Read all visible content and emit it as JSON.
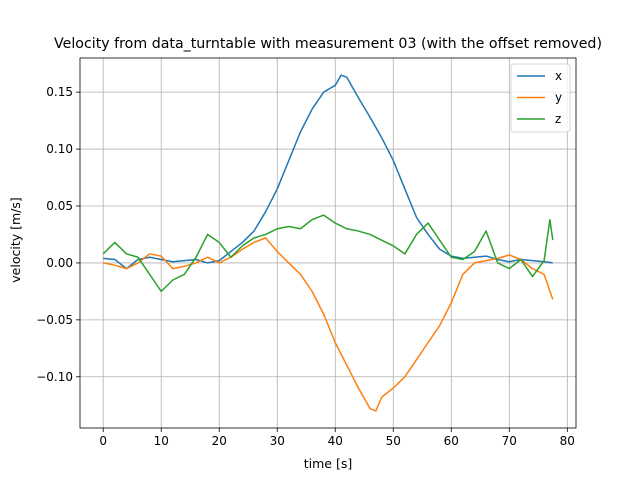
{
  "chart_data": {
    "type": "line",
    "title": "Velocity from data_turntable with measurement 03 (with the offset removed)",
    "xlabel": "time [s]",
    "ylabel": "velocity [m/s]",
    "xlim": [
      -4,
      81.5
    ],
    "ylim": [
      -0.145,
      0.18
    ],
    "xticks": [
      0,
      10,
      20,
      30,
      40,
      50,
      60,
      70,
      80
    ],
    "xtick_labels": [
      "0",
      "10",
      "20",
      "30",
      "40",
      "50",
      "60",
      "70",
      "80"
    ],
    "yticks": [
      -0.1,
      -0.05,
      0.0,
      0.05,
      0.1,
      0.15
    ],
    "ytick_labels": [
      "−0.10",
      "−0.05",
      "0.00",
      "0.05",
      "0.10",
      "0.15"
    ],
    "grid": true,
    "legend_position": "top-right",
    "series": [
      {
        "name": "x",
        "color": "#1f77b4",
        "points": [
          [
            0,
            0.004
          ],
          [
            2,
            0.003
          ],
          [
            4,
            -0.005
          ],
          [
            6,
            0.003
          ],
          [
            8,
            0.005
          ],
          [
            10,
            0.003
          ],
          [
            12,
            0.001
          ],
          [
            14,
            0.002
          ],
          [
            16,
            0.003
          ],
          [
            18,
            0.0
          ],
          [
            20,
            0.002
          ],
          [
            22,
            0.01
          ],
          [
            24,
            0.018
          ],
          [
            26,
            0.028
          ],
          [
            28,
            0.045
          ],
          [
            30,
            0.065
          ],
          [
            32,
            0.09
          ],
          [
            34,
            0.115
          ],
          [
            36,
            0.135
          ],
          [
            38,
            0.15
          ],
          [
            40,
            0.156
          ],
          [
            41,
            0.165
          ],
          [
            42,
            0.163
          ],
          [
            44,
            0.145
          ],
          [
            46,
            0.128
          ],
          [
            48,
            0.11
          ],
          [
            50,
            0.09
          ],
          [
            52,
            0.065
          ],
          [
            54,
            0.04
          ],
          [
            56,
            0.025
          ],
          [
            58,
            0.012
          ],
          [
            60,
            0.006
          ],
          [
            62,
            0.004
          ],
          [
            64,
            0.005
          ],
          [
            66,
            0.006
          ],
          [
            68,
            0.003
          ],
          [
            70,
            0.001
          ],
          [
            72,
            0.003
          ],
          [
            74,
            0.002
          ],
          [
            76,
            0.001
          ],
          [
            77.5,
            0.0
          ]
        ]
      },
      {
        "name": "y",
        "color": "#ff7f0e",
        "points": [
          [
            0,
            0.0
          ],
          [
            2,
            -0.002
          ],
          [
            4,
            -0.005
          ],
          [
            6,
            0.0
          ],
          [
            8,
            0.008
          ],
          [
            10,
            0.006
          ],
          [
            12,
            -0.005
          ],
          [
            14,
            -0.003
          ],
          [
            16,
            0.0
          ],
          [
            18,
            0.005
          ],
          [
            20,
            0.0
          ],
          [
            22,
            0.005
          ],
          [
            24,
            0.012
          ],
          [
            26,
            0.018
          ],
          [
            28,
            0.022
          ],
          [
            30,
            0.01
          ],
          [
            32,
            0.0
          ],
          [
            34,
            -0.01
          ],
          [
            36,
            -0.025
          ],
          [
            38,
            -0.045
          ],
          [
            40,
            -0.07
          ],
          [
            42,
            -0.09
          ],
          [
            44,
            -0.11
          ],
          [
            46,
            -0.128
          ],
          [
            47,
            -0.13
          ],
          [
            48,
            -0.118
          ],
          [
            50,
            -0.11
          ],
          [
            52,
            -0.1
          ],
          [
            54,
            -0.085
          ],
          [
            56,
            -0.07
          ],
          [
            58,
            -0.055
          ],
          [
            60,
            -0.035
          ],
          [
            62,
            -0.01
          ],
          [
            64,
            0.0
          ],
          [
            66,
            0.002
          ],
          [
            68,
            0.004
          ],
          [
            70,
            0.007
          ],
          [
            72,
            0.003
          ],
          [
            74,
            -0.005
          ],
          [
            76,
            -0.01
          ],
          [
            77.5,
            -0.032
          ]
        ]
      },
      {
        "name": "z",
        "color": "#2ca02c",
        "points": [
          [
            0,
            0.008
          ],
          [
            2,
            0.018
          ],
          [
            4,
            0.008
          ],
          [
            6,
            0.005
          ],
          [
            8,
            -0.01
          ],
          [
            10,
            -0.025
          ],
          [
            12,
            -0.015
          ],
          [
            14,
            -0.01
          ],
          [
            16,
            0.005
          ],
          [
            18,
            0.025
          ],
          [
            20,
            0.018
          ],
          [
            22,
            0.005
          ],
          [
            24,
            0.015
          ],
          [
            26,
            0.022
          ],
          [
            28,
            0.025
          ],
          [
            30,
            0.03
          ],
          [
            32,
            0.032
          ],
          [
            34,
            0.03
          ],
          [
            36,
            0.038
          ],
          [
            38,
            0.042
          ],
          [
            40,
            0.035
          ],
          [
            42,
            0.03
          ],
          [
            44,
            0.028
          ],
          [
            46,
            0.025
          ],
          [
            48,
            0.02
          ],
          [
            50,
            0.015
          ],
          [
            52,
            0.008
          ],
          [
            54,
            0.025
          ],
          [
            56,
            0.035
          ],
          [
            58,
            0.02
          ],
          [
            60,
            0.005
          ],
          [
            62,
            0.003
          ],
          [
            64,
            0.01
          ],
          [
            66,
            0.028
          ],
          [
            68,
            0.0
          ],
          [
            70,
            -0.005
          ],
          [
            72,
            0.003
          ],
          [
            74,
            -0.012
          ],
          [
            76,
            0.002
          ],
          [
            77,
            0.038
          ],
          [
            77.5,
            0.02
          ]
        ]
      }
    ]
  }
}
